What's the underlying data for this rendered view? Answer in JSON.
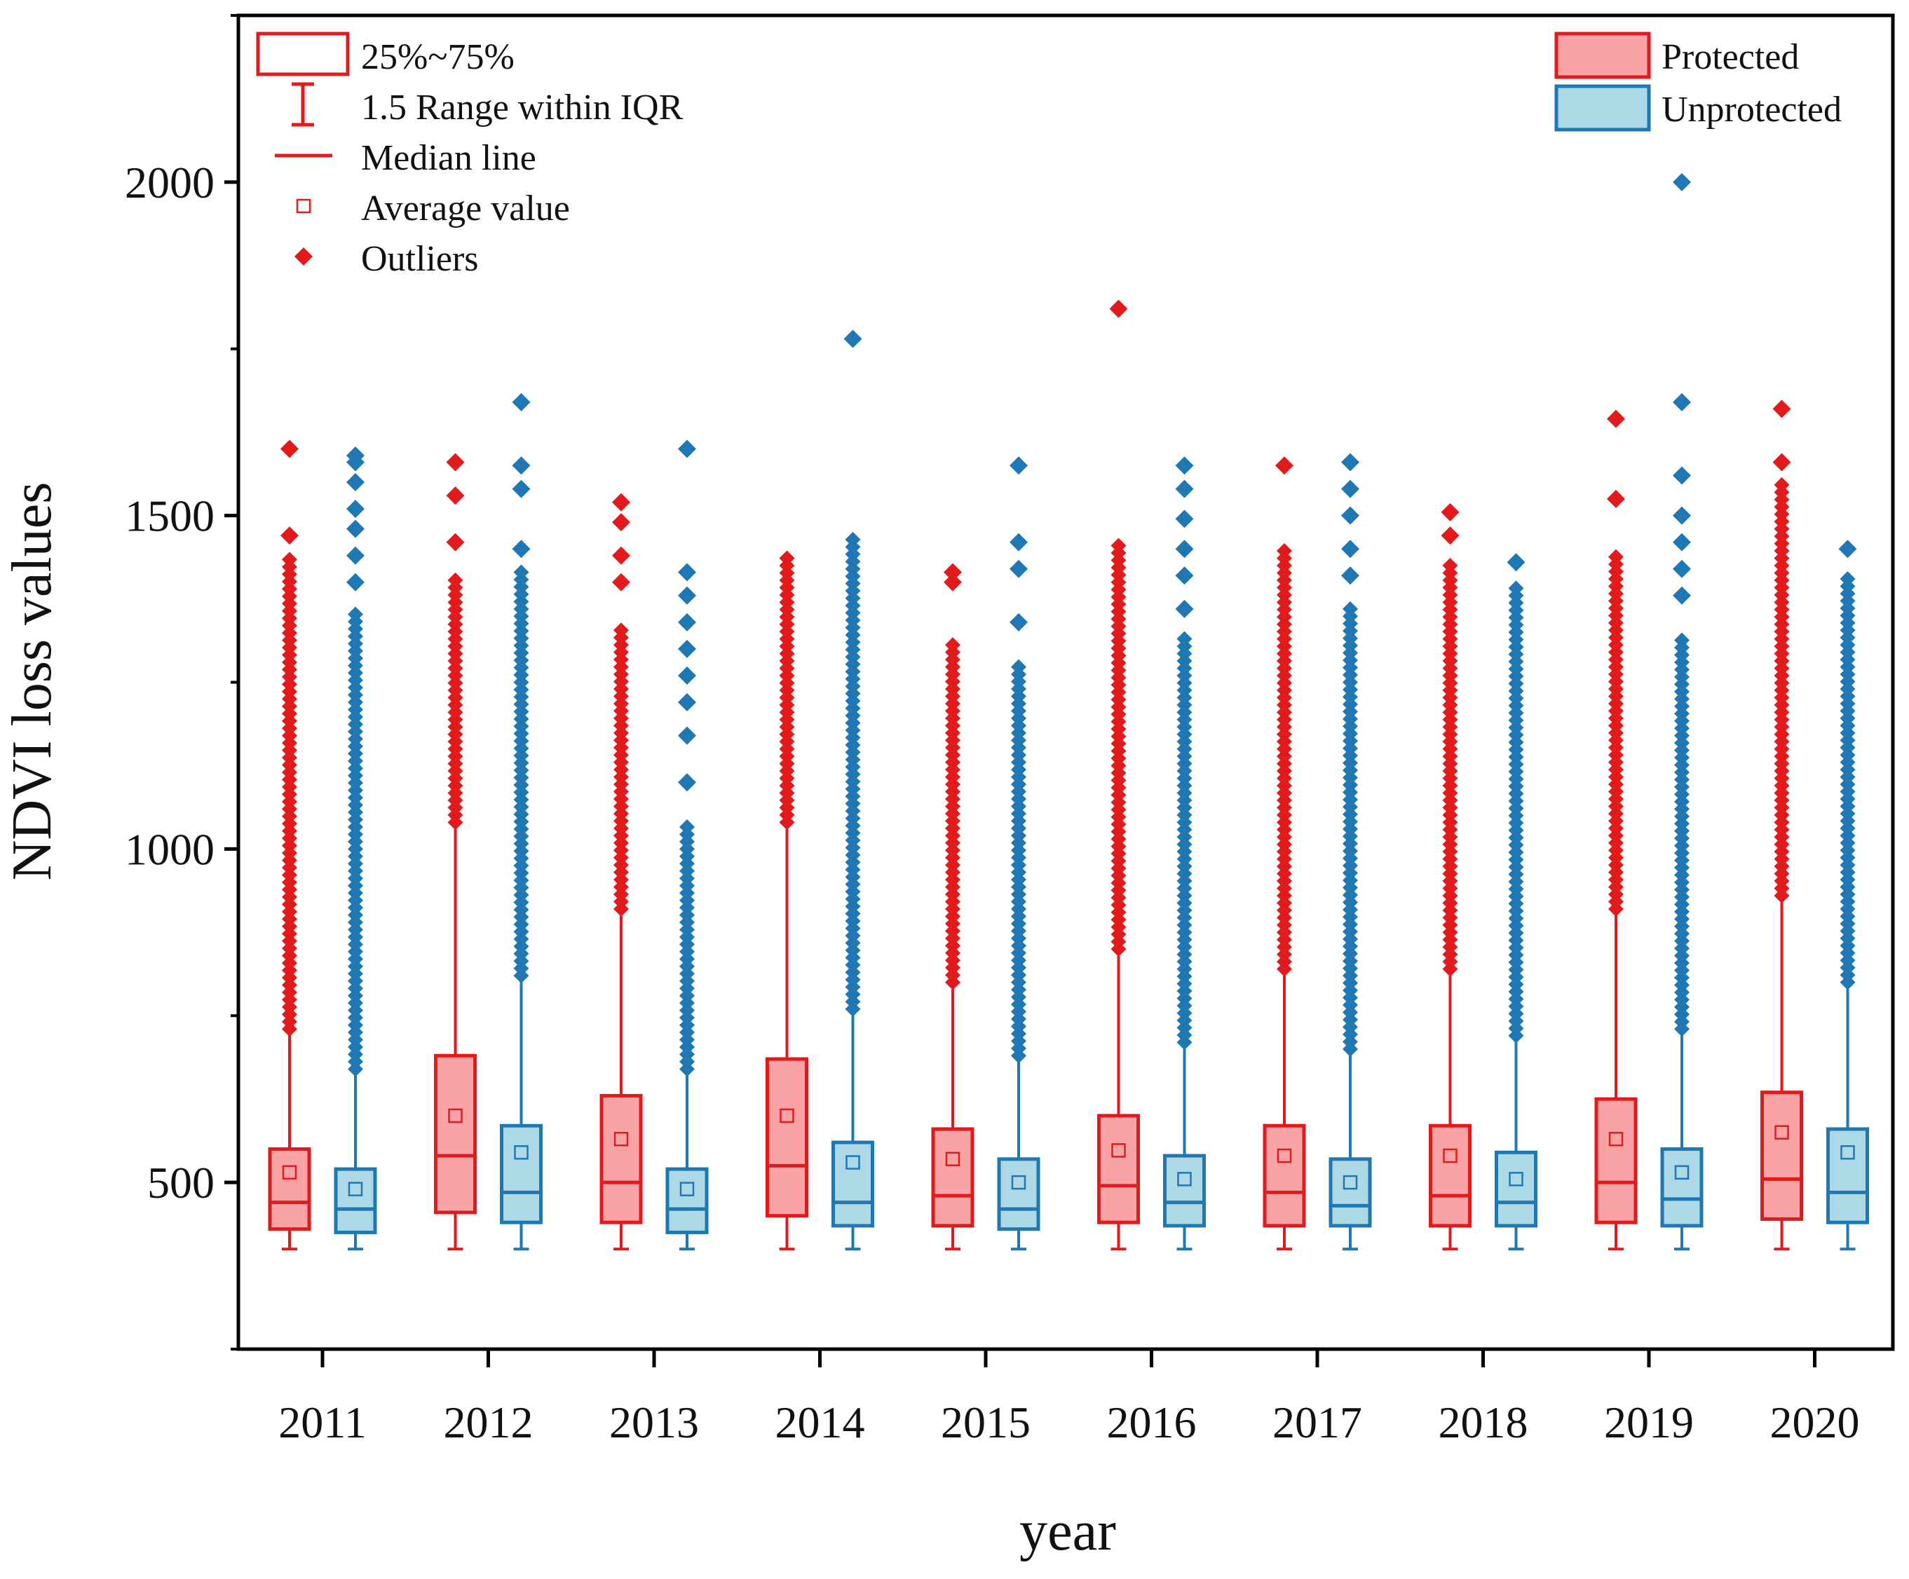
{
  "chart_data": {
    "type": "box",
    "title": "",
    "xlabel": "year",
    "ylabel": "NDVI loss values",
    "ylim": [
      250,
      2250
    ],
    "yticks": [
      500,
      1000,
      1500,
      2000
    ],
    "grid": false,
    "categories": [
      "2011",
      "2012",
      "2013",
      "2014",
      "2015",
      "2016",
      "2017",
      "2018",
      "2019",
      "2020"
    ],
    "colors": {
      "protected_stroke": "#e31a1c",
      "protected_fill": "#f9a3a7",
      "unprotected_stroke": "#1f78b4",
      "unprotected_fill": "#add8e6",
      "frame": "#000000"
    },
    "series": [
      {
        "name": "Protected",
        "boxes": [
          {
            "year": "2011",
            "min": 400,
            "q1": 430,
            "median": 470,
            "q3": 550,
            "max": 720,
            "mean": 515,
            "outlier_range": [
              730,
              1440
            ],
            "outliers": [
              1470,
              1600
            ]
          },
          {
            "year": "2012",
            "min": 400,
            "q1": 455,
            "median": 540,
            "q3": 690,
            "max": 1030,
            "mean": 600,
            "outlier_range": [
              1040,
              1410
            ],
            "outliers": [
              1460,
              1530,
              1580
            ]
          },
          {
            "year": "2013",
            "min": 400,
            "q1": 440,
            "median": 500,
            "q3": 630,
            "max": 900,
            "mean": 565,
            "outlier_range": [
              910,
              1330
            ],
            "outliers": [
              1400,
              1440,
              1490,
              1520
            ]
          },
          {
            "year": "2014",
            "min": 400,
            "q1": 450,
            "median": 525,
            "q3": 685,
            "max": 1030,
            "mean": 600,
            "outlier_range": [
              1040,
              1440
            ],
            "outliers": []
          },
          {
            "year": "2015",
            "min": 400,
            "q1": 435,
            "median": 480,
            "q3": 580,
            "max": 790,
            "mean": 535,
            "outlier_range": [
              800,
              1310
            ],
            "outliers": [
              1400,
              1415
            ]
          },
          {
            "year": "2016",
            "min": 400,
            "q1": 440,
            "median": 495,
            "q3": 600,
            "max": 840,
            "mean": 548,
            "outlier_range": [
              850,
              1460
            ],
            "outliers": [
              1810
            ]
          },
          {
            "year": "2017",
            "min": 400,
            "q1": 435,
            "median": 485,
            "q3": 585,
            "max": 810,
            "mean": 540,
            "outlier_range": [
              820,
              1450
            ],
            "outliers": [
              1575
            ]
          },
          {
            "year": "2018",
            "min": 400,
            "q1": 435,
            "median": 480,
            "q3": 585,
            "max": 810,
            "mean": 540,
            "outlier_range": [
              820,
              1430
            ],
            "outliers": [
              1470,
              1505
            ]
          },
          {
            "year": "2019",
            "min": 400,
            "q1": 440,
            "median": 500,
            "q3": 625,
            "max": 900,
            "mean": 565,
            "outlier_range": [
              910,
              1440
            ],
            "outliers": [
              1525,
              1645
            ]
          },
          {
            "year": "2020",
            "min": 400,
            "q1": 445,
            "median": 505,
            "q3": 635,
            "max": 920,
            "mean": 575,
            "outlier_range": [
              930,
              1550
            ],
            "outliers": [
              1580,
              1660
            ]
          }
        ]
      },
      {
        "name": "Unprotected",
        "boxes": [
          {
            "year": "2011",
            "min": 400,
            "q1": 425,
            "median": 460,
            "q3": 520,
            "max": 660,
            "mean": 490,
            "outlier_range": [
              670,
              1360
            ],
            "outliers": [
              1400,
              1440,
              1480,
              1510,
              1550,
              1580,
              1590
            ]
          },
          {
            "year": "2012",
            "min": 400,
            "q1": 440,
            "median": 485,
            "q3": 585,
            "max": 800,
            "mean": 545,
            "outlier_range": [
              810,
              1420
            ],
            "outliers": [
              1450,
              1540,
              1575,
              1670
            ]
          },
          {
            "year": "2013",
            "min": 400,
            "q1": 425,
            "median": 460,
            "q3": 520,
            "max": 660,
            "mean": 490,
            "outlier_range": [
              670,
              1040
            ],
            "outliers": [
              1100,
              1170,
              1220,
              1260,
              1300,
              1340,
              1380,
              1415,
              1600
            ]
          },
          {
            "year": "2014",
            "min": 400,
            "q1": 435,
            "median": 470,
            "q3": 560,
            "max": 750,
            "mean": 530,
            "outlier_range": [
              760,
              1470
            ],
            "outliers": [
              1765
            ]
          },
          {
            "year": "2015",
            "min": 400,
            "q1": 430,
            "median": 460,
            "q3": 535,
            "max": 680,
            "mean": 500,
            "outlier_range": [
              690,
              1280
            ],
            "outliers": [
              1340,
              1420,
              1460,
              1575
            ]
          },
          {
            "year": "2016",
            "min": 400,
            "q1": 435,
            "median": 470,
            "q3": 540,
            "max": 700,
            "mean": 505,
            "outlier_range": [
              710,
              1320
            ],
            "outliers": [
              1360,
              1410,
              1450,
              1495,
              1540,
              1575
            ]
          },
          {
            "year": "2017",
            "min": 400,
            "q1": 435,
            "median": 465,
            "q3": 535,
            "max": 690,
            "mean": 500,
            "outlier_range": [
              700,
              1360
            ],
            "outliers": [
              1410,
              1450,
              1500,
              1540,
              1580
            ]
          },
          {
            "year": "2018",
            "min": 400,
            "q1": 435,
            "median": 470,
            "q3": 545,
            "max": 710,
            "mean": 505,
            "outlier_range": [
              720,
              1400
            ],
            "outliers": [
              1430
            ]
          },
          {
            "year": "2019",
            "min": 400,
            "q1": 435,
            "median": 475,
            "q3": 550,
            "max": 720,
            "mean": 515,
            "outlier_range": [
              730,
              1320
            ],
            "outliers": [
              1380,
              1420,
              1460,
              1500,
              1560,
              1670,
              2000
            ]
          },
          {
            "year": "2020",
            "min": 400,
            "q1": 440,
            "median": 485,
            "q3": 580,
            "max": 790,
            "mean": 545,
            "outlier_range": [
              800,
              1410
            ],
            "outliers": [
              1450
            ]
          }
        ]
      }
    ],
    "legend_left": {
      "position": "top-left",
      "items": [
        {
          "symbol": "box",
          "label": "25%~75%"
        },
        {
          "symbol": "whisker",
          "label": "1.5 Range within IQR"
        },
        {
          "symbol": "median",
          "label": "Median line"
        },
        {
          "symbol": "mean",
          "label": "Average value"
        },
        {
          "symbol": "outlier",
          "label": "Outliers"
        }
      ]
    },
    "legend_right": {
      "position": "top-right",
      "items": [
        {
          "label": "Protected",
          "series": "Protected"
        },
        {
          "label": "Unprotected",
          "series": "Unprotected"
        }
      ]
    }
  }
}
